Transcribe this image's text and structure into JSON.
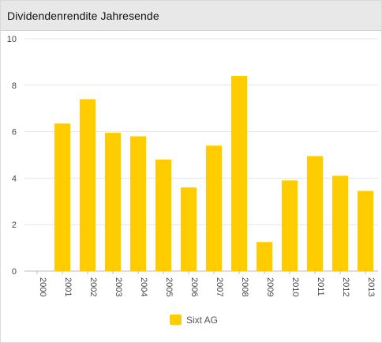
{
  "header": {
    "title": "Dividendenrendite Jahresende"
  },
  "chart_data": {
    "type": "bar",
    "title": "Dividendenrendite Jahresende",
    "xlabel": "",
    "ylabel": "",
    "categories": [
      "2000",
      "2001",
      "2002",
      "2003",
      "2004",
      "2005",
      "2006",
      "2007",
      "2008",
      "2009",
      "2010",
      "2011",
      "2012",
      "2013"
    ],
    "series": [
      {
        "name": "Sixt AG",
        "color": "#ffcc00",
        "values": [
          0,
          6.35,
          7.4,
          5.95,
          5.8,
          4.8,
          3.6,
          5.4,
          8.4,
          1.25,
          3.9,
          4.95,
          4.1,
          3.45
        ]
      }
    ],
    "ylim": [
      0,
      10
    ],
    "yticks": [
      0,
      2,
      4,
      6,
      8,
      10
    ],
    "grid": true,
    "legend_position": "bottom-center"
  }
}
